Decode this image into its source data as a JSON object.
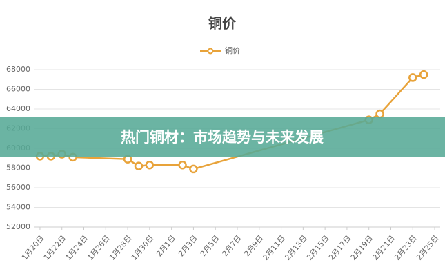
{
  "chart_data": {
    "type": "line",
    "title": "铜价",
    "x": [
      0,
      1,
      2,
      3,
      8,
      9,
      10,
      13,
      14,
      30,
      31,
      34,
      35
    ],
    "series": [
      {
        "name": "铜价",
        "color": "#e8a33a",
        "values": [
          59200,
          59200,
          59400,
          59100,
          58900,
          58200,
          58300,
          58300,
          57900,
          62900,
          63500,
          67200,
          67500
        ]
      }
    ],
    "xlim": [
      -0.5,
      36.5
    ],
    "xticks": [
      {
        "value": 0,
        "label": "1月20日"
      },
      {
        "value": 2,
        "label": "1月22日"
      },
      {
        "value": 4,
        "label": "1月24日"
      },
      {
        "value": 6,
        "label": "1月26日"
      },
      {
        "value": 8,
        "label": "1月28日"
      },
      {
        "value": 10,
        "label": "1月30日"
      },
      {
        "value": 12,
        "label": "2月1日"
      },
      {
        "value": 14,
        "label": "2月3日"
      },
      {
        "value": 16,
        "label": "2月5日"
      },
      {
        "value": 18,
        "label": "2月7日"
      },
      {
        "value": 20,
        "label": "2月9日"
      },
      {
        "value": 22,
        "label": "2月11日"
      },
      {
        "value": 24,
        "label": "2月13日"
      },
      {
        "value": 26,
        "label": "2月15日"
      },
      {
        "value": 28,
        "label": "2月17日"
      },
      {
        "value": 30,
        "label": "2月19日"
      },
      {
        "value": 32,
        "label": "2月21日"
      },
      {
        "value": 34,
        "label": "2月23日"
      },
      {
        "value": 36,
        "label": "2月25日"
      }
    ],
    "ylim": [
      52000,
      68000
    ],
    "yticks": [
      52000,
      54000,
      56000,
      58000,
      60000,
      62000,
      64000,
      66000,
      68000
    ],
    "grid": true,
    "legend": "top"
  },
  "banner": {
    "text": "热门铜材：市场趋势与未来发展"
  }
}
